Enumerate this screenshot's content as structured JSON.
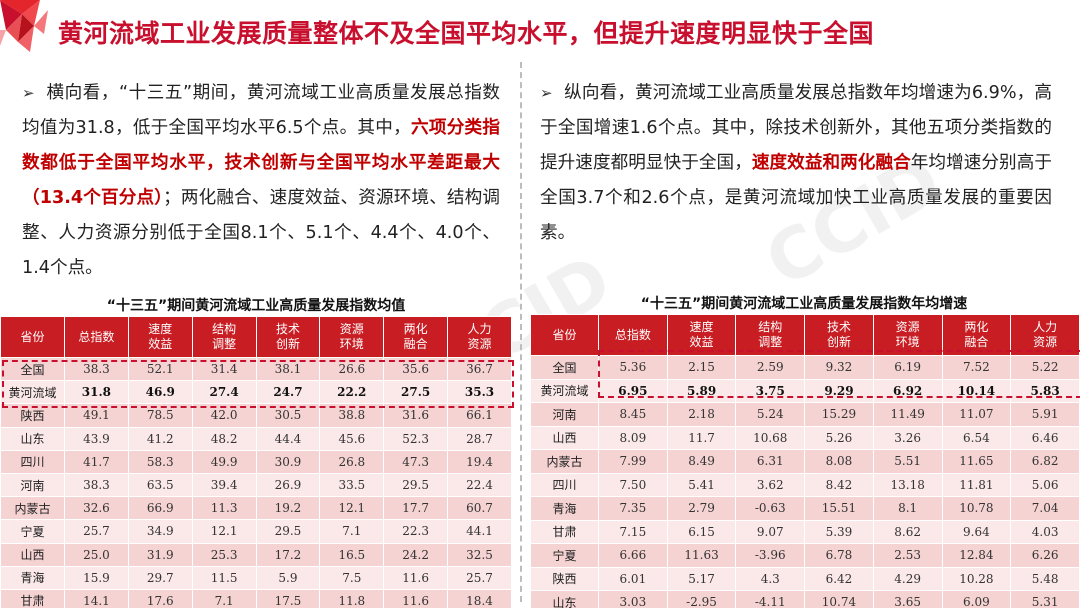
{
  "title": "黄河流域工业发展质量整体不及全国平均水平，但提升速度明显快于全国",
  "watermark": "CCID",
  "left_text": {
    "s1": "横向看，“十三五”期间，黄河流域工业高质量发展总指数均值为31.8，低于全国平均水平6.5个点。其中，",
    "s2": "六项分类指数都低于全国平均水平，技术创新与全国平均水平差距最大（13.4个百分点）",
    "s3": "；两化融合、速度效益、资源环境、结构调整、人力资源分别低于全国8.1个、5.1个、4.4个、4.0个、1.4个点。"
  },
  "right_text": {
    "s1": "纵向看，黄河流域工业高质量发展总指数年均增速为6.9%，高于全国增速1.6个点。其中，除技术创新外，其他五项分类指数的提升速度都明显快于全国，",
    "s2": "速度效益和两化融合",
    "s3": "年均增速分别高于全国3.7个和2.6个点，是黄河流域加快工业高质量发展的重要因素。"
  },
  "left_table": {
    "title": "“十三五”期间黄河流域工业高质量发展指数均值",
    "headers": [
      "省份",
      "总指数",
      "速度\n效益",
      "结构\n调整",
      "技术\n创新",
      "资源\n环境",
      "两化\n融合",
      "人力\n资源"
    ],
    "rows": [
      [
        "全国",
        "38.3",
        "52.1",
        "31.4",
        "38.1",
        "26.6",
        "35.6",
        "36.7"
      ],
      [
        "黄河流域",
        "31.8",
        "46.9",
        "27.4",
        "24.7",
        "22.2",
        "27.5",
        "35.3"
      ],
      [
        "陕西",
        "49.1",
        "78.5",
        "42.0",
        "30.5",
        "38.8",
        "31.6",
        "66.1"
      ],
      [
        "山东",
        "43.9",
        "41.2",
        "48.2",
        "44.4",
        "45.6",
        "52.3",
        "28.7"
      ],
      [
        "四川",
        "41.7",
        "58.3",
        "49.9",
        "30.9",
        "26.8",
        "47.3",
        "19.4"
      ],
      [
        "河南",
        "38.3",
        "63.5",
        "39.4",
        "26.9",
        "33.5",
        "29.5",
        "22.4"
      ],
      [
        "内蒙古",
        "32.6",
        "66.9",
        "11.3",
        "19.2",
        "12.1",
        "17.7",
        "60.7"
      ],
      [
        "宁夏",
        "25.7",
        "34.9",
        "12.1",
        "29.5",
        "7.1",
        "22.3",
        "44.1"
      ],
      [
        "山西",
        "25.0",
        "31.9",
        "25.3",
        "17.2",
        "16.5",
        "24.2",
        "32.5"
      ],
      [
        "青海",
        "15.9",
        "29.7",
        "11.5",
        "5.9",
        "7.5",
        "11.6",
        "25.7"
      ],
      [
        "甘肃",
        "14.1",
        "17.6",
        "7.1",
        "17.5",
        "11.8",
        "11.6",
        "18.4"
      ]
    ]
  },
  "right_table": {
    "title": "“十三五”期间黄河流域工业高质量发展指数年均增速",
    "headers": [
      "省份",
      "总指数",
      "速度\n效益",
      "结构\n调整",
      "技术\n创新",
      "资源\n环境",
      "两化\n融合",
      "人力\n资源"
    ],
    "rows": [
      [
        "全国",
        "5.36",
        "2.15",
        "2.59",
        "9.32",
        "6.19",
        "7.52",
        "5.22"
      ],
      [
        "黄河流域",
        "6.95",
        "5.89",
        "3.75",
        "9.29",
        "6.92",
        "10.14",
        "5.83"
      ],
      [
        "河南",
        "8.45",
        "2.18",
        "5.24",
        "15.29",
        "11.49",
        "11.07",
        "5.91"
      ],
      [
        "山西",
        "8.09",
        "11.7",
        "10.68",
        "5.26",
        "3.26",
        "6.54",
        "6.46"
      ],
      [
        "内蒙古",
        "7.99",
        "8.49",
        "6.31",
        "8.08",
        "5.51",
        "11.65",
        "6.82"
      ],
      [
        "四川",
        "7.50",
        "5.41",
        "3.62",
        "8.42",
        "13.18",
        "11.81",
        "5.06"
      ],
      [
        "青海",
        "7.35",
        "2.79",
        "-0.63",
        "15.51",
        "8.1",
        "10.78",
        "7.04"
      ],
      [
        "甘肃",
        "7.15",
        "6.15",
        "9.07",
        "5.39",
        "8.62",
        "9.64",
        "4.03"
      ],
      [
        "宁夏",
        "6.66",
        "11.63",
        "-3.96",
        "6.78",
        "2.53",
        "12.84",
        "6.26"
      ],
      [
        "陕西",
        "6.01",
        "5.17",
        "4.3",
        "6.42",
        "4.29",
        "10.28",
        "5.48"
      ],
      [
        "山东",
        "3.03",
        "-2.95",
        "-4.11",
        "10.74",
        "3.65",
        "6.09",
        "5.31"
      ]
    ]
  }
}
